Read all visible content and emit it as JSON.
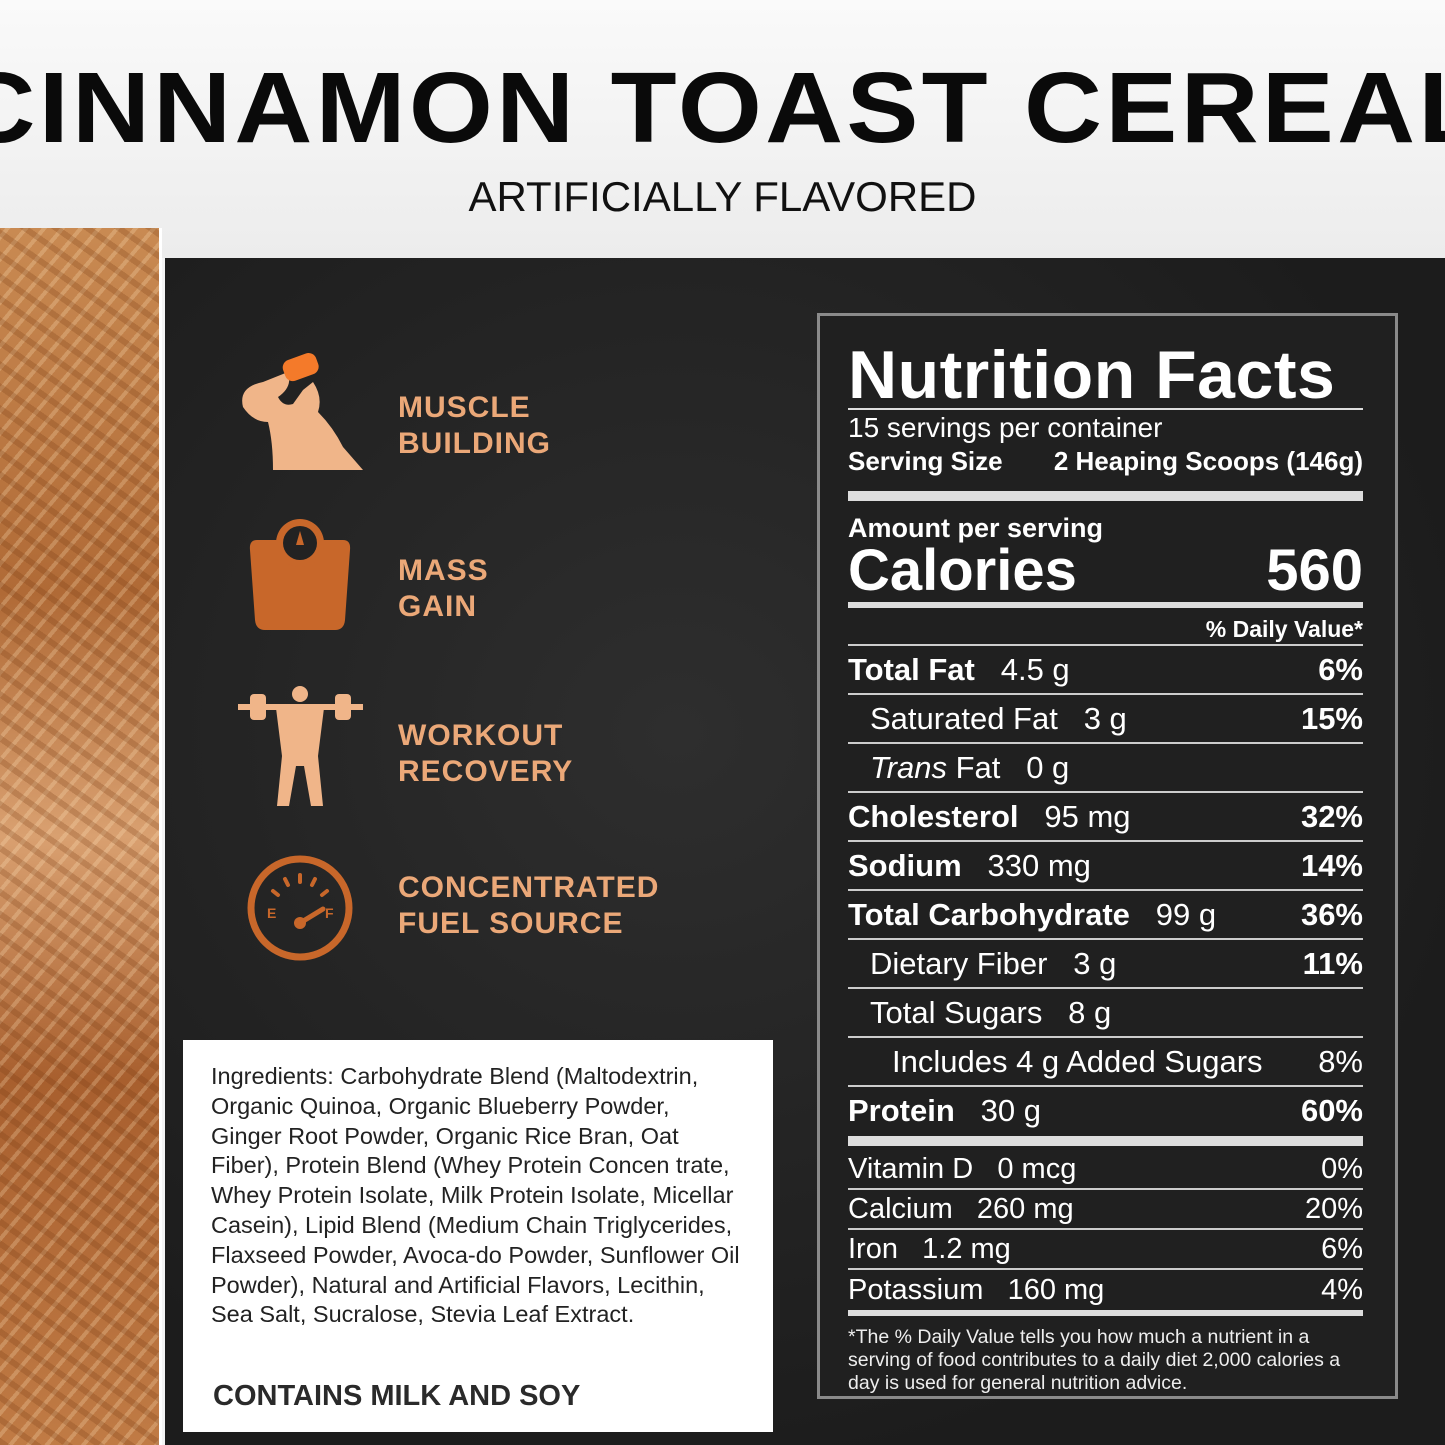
{
  "header": {
    "title": "CINNAMON TOAST CEREAL",
    "subtitle": "ARTIFICIALLY FLAVORED"
  },
  "features": [
    {
      "icon": "drinking-man-icon",
      "label": "MUSCLE\nBUILDING"
    },
    {
      "icon": "scale-icon",
      "label": "MASS\nGAIN"
    },
    {
      "icon": "weightlifter-icon",
      "label": "WORKOUT\nRECOVERY"
    },
    {
      "icon": "fuel-gauge-icon",
      "label": "CONCENTRATED\nFUEL SOURCE"
    }
  ],
  "ingredients": {
    "label": "Ingredients:",
    "text": " Carbohydrate Blend (Maltodextrin, Organic Quinoa, Organic Blueberry Powder, Ginger Root Powder, Organic Rice Bran, Oat Fiber), Protein Blend (Whey Protein Concen trate, Whey Protein Isolate, Milk Protein Isolate, Micellar Casein), Lipid Blend (Medium Chain Triglycerides, Flaxseed Powder, Avoca-do Powder, Sunflower Oil Powder), Natural and Artificial Flavors, Lecithin, Sea Salt, Sucralose, Stevia Leaf Extract.",
    "allergen": "CONTAINS MILK AND SOY"
  },
  "nutrition": {
    "title": "Nutrition Facts",
    "servings": "15 servings per container",
    "serving_size_label": "Serving Size",
    "serving_size": "2 Heaping Scoops (146g)",
    "amount_label": "Amount per serving",
    "calories_label": "Calories",
    "calories": "560",
    "dv_header": "% Daily Value*",
    "rows": [
      {
        "name": "Total Fat",
        "amount": "4.5 g",
        "dv": "6%",
        "bold": true,
        "indent": 0
      },
      {
        "name": "Saturated Fat",
        "amount": "3 g",
        "dv": "15%",
        "bold": false,
        "indent": 1
      },
      {
        "name": "Trans Fat",
        "amount": "0 g",
        "dv": "",
        "bold": false,
        "indent": 1,
        "italic_prefix": "Trans"
      },
      {
        "name": "Cholesterol",
        "amount": "95 mg",
        "dv": "32%",
        "bold": true,
        "indent": 0
      },
      {
        "name": "Sodium",
        "amount": "330 mg",
        "dv": "14%",
        "bold": true,
        "indent": 0
      },
      {
        "name": "Total Carbohydrate",
        "amount": "99 g",
        "dv": "36%",
        "bold": true,
        "indent": 0
      },
      {
        "name": "Dietary Fiber",
        "amount": "3 g",
        "dv": "11%",
        "bold": false,
        "indent": 1
      },
      {
        "name": "Total Sugars",
        "amount": "8 g",
        "dv": "",
        "bold": false,
        "indent": 1
      },
      {
        "name": "Includes 4 g Added Sugars",
        "amount": "",
        "dv": "8%",
        "bold": false,
        "indent": 2
      },
      {
        "name": "Protein",
        "amount": "30 g",
        "dv": "60%",
        "bold": true,
        "indent": 0
      }
    ],
    "vitamins": [
      {
        "name": "Vitamin D",
        "amount": "0 mcg",
        "dv": "0%"
      },
      {
        "name": "Calcium",
        "amount": "260 mg",
        "dv": "20%"
      },
      {
        "name": "Iron",
        "amount": "1.2 mg",
        "dv": "6%"
      },
      {
        "name": "Potassium",
        "amount": "160 mg",
        "dv": "4%"
      }
    ],
    "footnote": "*The % Daily Value tells you how much a nutrient in a serving of food contributes to a daily diet 2,000 calories a day is used for general nutrition advice."
  },
  "colors": {
    "accent": "#eba878",
    "icon_dark": "#c8672a",
    "panel": "#202020"
  }
}
